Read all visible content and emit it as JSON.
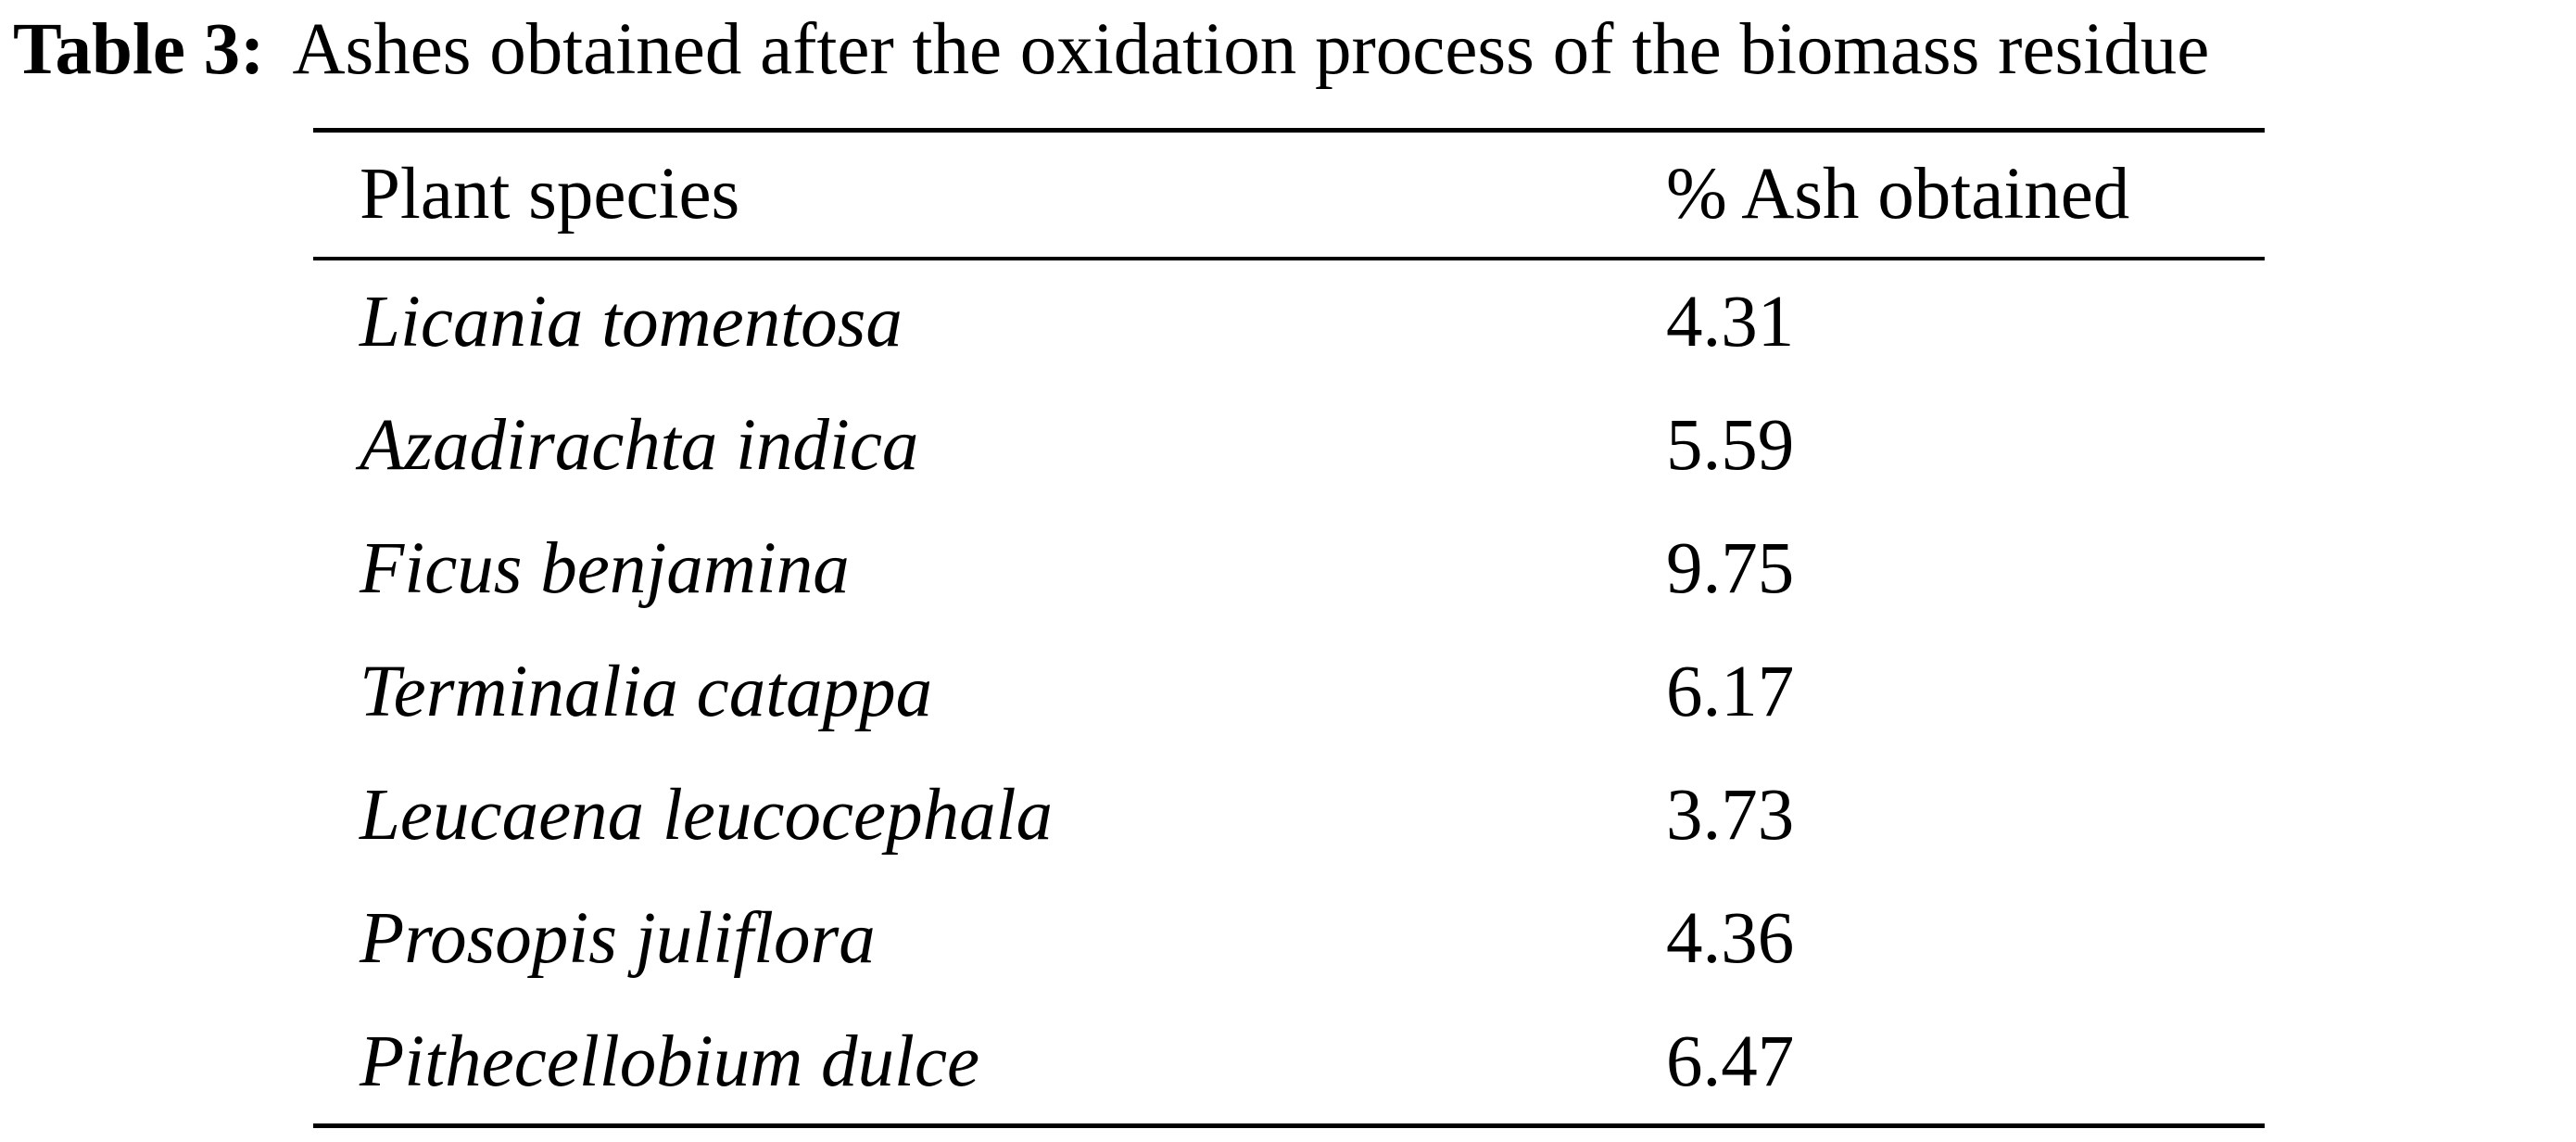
{
  "caption": {
    "label": "Table 3:",
    "text": "Ashes obtained after the oxidation process of the biomass residue"
  },
  "table": {
    "columns": [
      "Plant species",
      "% Ash obtained"
    ],
    "rows": [
      {
        "species": "Licania tomentosa",
        "ash": "4.31"
      },
      {
        "species": "Azadirachta indica",
        "ash": "5.59"
      },
      {
        "species": "Ficus benjamina",
        "ash": "9.75"
      },
      {
        "species": "Terminalia catappa",
        "ash": "6.17"
      },
      {
        "species": "Leucaena leucocephala",
        "ash": "3.73"
      },
      {
        "species": "Prosopis juliflora",
        "ash": "4.36"
      },
      {
        "species": "Pithecellobium dulce",
        "ash": "6.47"
      }
    ]
  }
}
